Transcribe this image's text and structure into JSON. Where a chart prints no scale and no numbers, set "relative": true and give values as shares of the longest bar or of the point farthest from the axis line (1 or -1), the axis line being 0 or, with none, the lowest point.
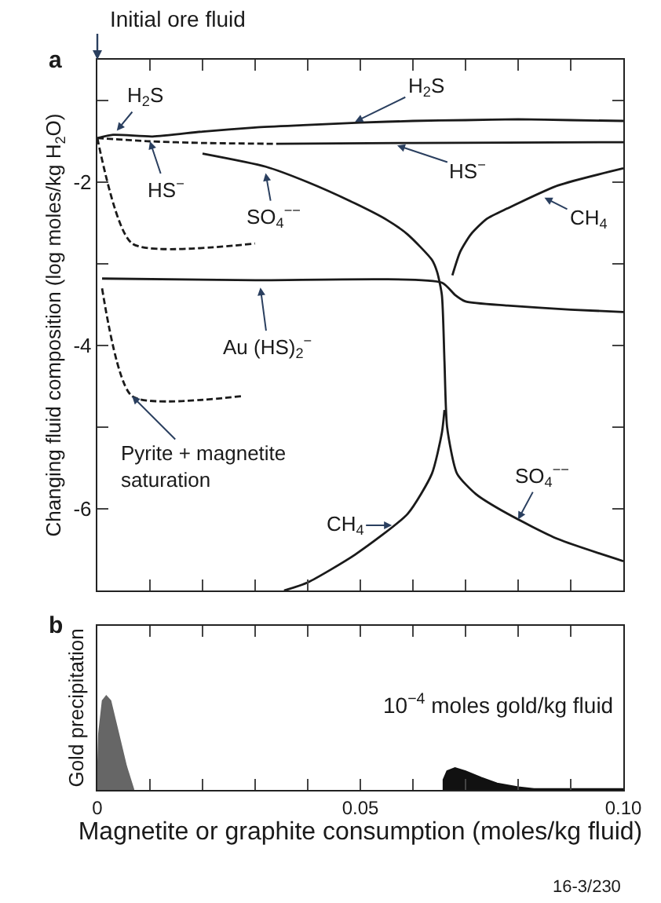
{
  "chart_data": [
    {
      "type": "line",
      "ylabel": "Changing fluid composition (log moles/kg H$_{2}$O)",
      "xlim": [
        0,
        0.1
      ],
      "ylim": [
        -7,
        -0.5
      ],
      "xticks": [
        {
          "value": 0,
          "label": null
        },
        {
          "value": 0.01,
          "label": null
        },
        {
          "value": 0.02,
          "label": null
        },
        {
          "value": 0.03,
          "label": null
        },
        {
          "value": 0.04,
          "label": null
        },
        {
          "value": 0.05,
          "label": null
        },
        {
          "value": 0.06,
          "label": null
        },
        {
          "value": 0.07,
          "label": null
        },
        {
          "value": 0.08,
          "label": null
        },
        {
          "value": 0.09,
          "label": null
        },
        {
          "value": 0.1,
          "label": null
        }
      ],
      "yticks": [
        {
          "value": -1,
          "label": null
        },
        -2,
        {
          "value": -3,
          "label": null
        },
        -4,
        {
          "value": -5,
          "label": null
        },
        -6
      ],
      "tick_labels": "y",
      "series": [
        {
          "color": "#1a1a1a",
          "line_style": "solid",
          "x": [
            0,
            0.003,
            0.0105,
            0.02,
            0.03,
            0.04,
            0.05,
            0.06,
            0.07,
            0.08,
            0.09,
            0.1
          ],
          "values": [
            -1.46,
            -1.42,
            -1.44,
            -1.38,
            -1.33,
            -1.3,
            -1.27,
            -1.25,
            -1.24,
            -1.23,
            -1.24,
            -1.25
          ]
        },
        {
          "color": "#1a1a1a",
          "line_style": "dashed",
          "x": [
            0,
            0.01,
            0.02,
            0.034
          ],
          "values": [
            -1.46,
            -1.5,
            -1.52,
            -1.53
          ]
        },
        {
          "color": "#1a1a1a",
          "line_style": "solid",
          "x": [
            0.034,
            0.06,
            0.1
          ],
          "values": [
            -1.53,
            -1.52,
            -1.51
          ]
        },
        {
          "color": "#1a1a1a",
          "line_style": "dashed",
          "x": [
            0,
            0.0066,
            0.03
          ],
          "values": [
            -1.46,
            -2.75,
            -2.75
          ]
        },
        {
          "color": "#1a1a1a",
          "line_style": "solid",
          "x": [
            0.02,
            0.032,
            0.04,
            0.049,
            0.055,
            0.059,
            0.0636,
            0.0646,
            0.0655,
            0.066,
            0.0665,
            0.0684,
            0.072,
            0.078,
            0.0876,
            0.1
          ],
          "values": [
            -1.65,
            -1.81,
            -2.0,
            -2.26,
            -2.46,
            -2.64,
            -2.95,
            -3.1,
            -3.38,
            -4.2,
            -5.0,
            -5.57,
            -5.82,
            -6.06,
            -6.37,
            -6.64
          ]
        },
        {
          "color": "#1a1a1a",
          "line_style": "solid",
          "x": [
            0.0009,
            0.03,
            0.0655,
            0.068,
            0.07,
            0.078,
            0.09,
            0.1
          ],
          "values": [
            -3.18,
            -3.2,
            -3.23,
            -3.38,
            -3.46,
            -3.51,
            -3.56,
            -3.59
          ]
        },
        {
          "color": "#1a1a1a",
          "line_style": "dashed",
          "x": [
            0.0009,
            0.0066,
            0.0273
          ],
          "values": [
            -3.3,
            -4.62,
            -4.62
          ]
        },
        {
          "color": "#1a1a1a",
          "line_style": "solid",
          "x": [
            0.0675,
            0.069,
            0.071,
            0.074,
            0.078,
            0.0876,
            0.1
          ],
          "values": [
            -3.14,
            -2.85,
            -2.64,
            -2.45,
            -2.32,
            -2.04,
            -1.83
          ]
        },
        {
          "color": "#1a1a1a",
          "line_style": "solid",
          "x": [
            0.0355,
            0.04,
            0.049,
            0.059,
            0.0636,
            0.0655,
            0.066
          ],
          "values": [
            -7,
            -6.9,
            -6.56,
            -6.06,
            -5.57,
            -5.07,
            -4.79
          ]
        }
      ],
      "annotations": [
        "a",
        "Initial ore fluid",
        {
          "text": "H$_{2}$S",
          "x": 0.0037,
          "y": -1.37
        },
        {
          "text": "H$_{2}$S",
          "x": 0.049,
          "y": -1.26
        },
        {
          "text": "HS$^{−}$",
          "x": 0.01,
          "y": -1.5
        },
        {
          "text": "HS$^{−}$",
          "x": 0.057,
          "y": -1.55
        },
        {
          "text": "SO$_{4}$$^{−−}$",
          "x": 0.032,
          "y": -1.89
        },
        {
          "text": "CH$_{4}$",
          "x": 0.085,
          "y": -2.19
        },
        {
          "text": "Au (HS)$_{2}$$^{−}$",
          "x": 0.031,
          "y": -3.29
        },
        {
          "text": "Pyrite + magnetite\nsaturation",
          "x": 0.0066,
          "y": -4.62
        },
        {
          "text": "CH$_{4}$",
          "x": 0.056,
          "y": -6.2
        },
        {
          "text": "SO$_{4}$$^{−−}$",
          "x": 0.08,
          "y": -6.13
        }
      ]
    },
    {
      "type": "area",
      "relative": true,
      "ylabel": "Gold precipitation",
      "xlabel": "Magnetite or graphite consumption (moles/kg fluid)",
      "xlim": [
        0,
        0.1
      ],
      "xticks": [
        0,
        {
          "value": 0.01,
          "label": null
        },
        {
          "value": 0.02,
          "label": null
        },
        {
          "value": 0.03,
          "label": null
        },
        {
          "value": 0.04,
          "label": null
        },
        0.05,
        {
          "value": 0.06,
          "label": null
        },
        {
          "value": 0.07,
          "label": null
        },
        {
          "value": 0.08,
          "label": null
        },
        {
          "value": 0.09,
          "label": null
        },
        {
          "value": 0.1,
          "label": "0.10"
        }
      ],
      "series": [
        {
          "color": "#666666",
          "x": [
            0,
            0.0003,
            0.001,
            0.0017,
            0.0025,
            0.004,
            0.0055,
            0.0069
          ],
          "values": [
            0,
            0.6,
            0.95,
            1,
            0.95,
            0.6,
            0.25,
            0
          ]
        },
        {
          "color": "#111111",
          "x": [
            0.0658,
            0.0658,
            0.0665,
            0.068,
            0.07,
            0.073,
            0.076,
            0.08,
            0.083,
            0.1
          ],
          "values": [
            0,
            0.11,
            0.2,
            0.233,
            0.2,
            0.13,
            0.07,
            0.03,
            0.01,
            0.01
          ]
        }
      ],
      "annotations": [
        "b",
        "10$^{−4}$ moles gold/kg fluid",
        "16-3/230"
      ]
    }
  ]
}
